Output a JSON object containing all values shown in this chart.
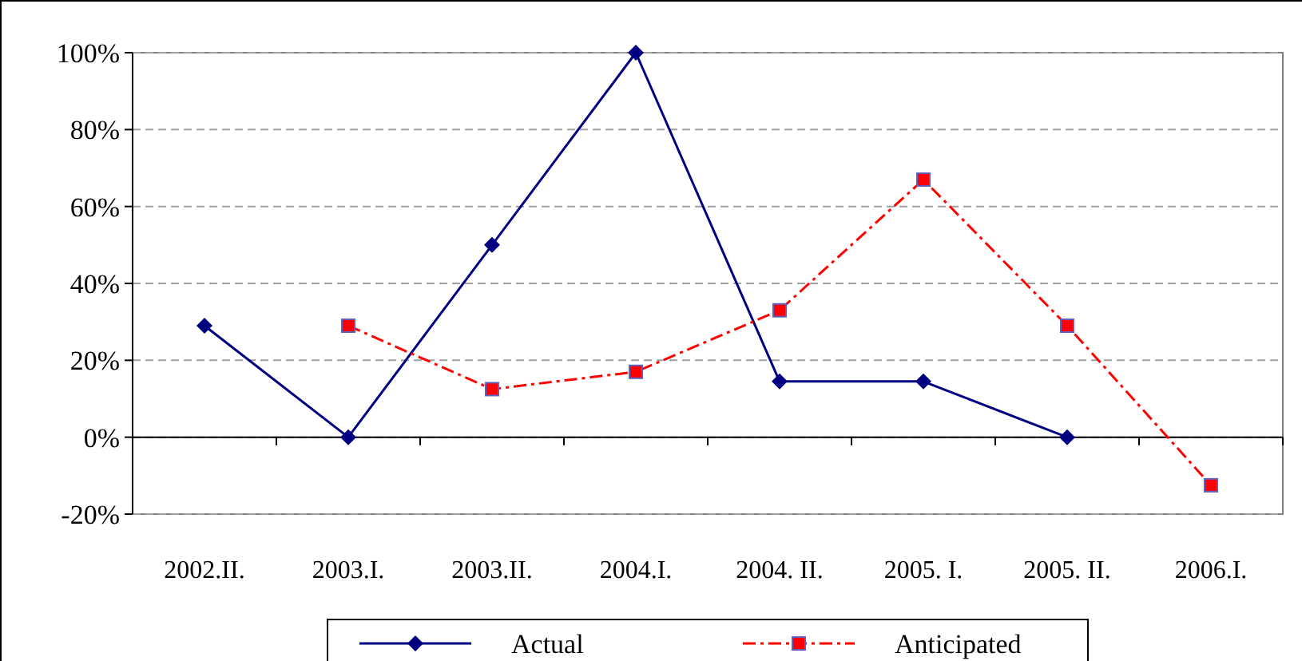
{
  "chart_data": {
    "type": "line",
    "categories": [
      "2002.II.",
      "2003.I.",
      "2003.II.",
      "2004.I.",
      "2004. II.",
      "2005. I.",
      "2005. II.",
      "2006.I."
    ],
    "series": [
      {
        "name": "Actual",
        "color": "#000080",
        "marker": "diamond",
        "line_style": "solid",
        "values": [
          29,
          0,
          50,
          100,
          14.5,
          14.5,
          0,
          null
        ]
      },
      {
        "name": "Anticipated",
        "color": "#ff0000",
        "marker": "square",
        "line_style": "dashed",
        "values": [
          null,
          29,
          12.5,
          17,
          33,
          67,
          29,
          -12.5
        ]
      }
    ],
    "ylim": [
      -20,
      100
    ],
    "yticks": [
      {
        "value": -20,
        "label": "-20%"
      },
      {
        "value": 0,
        "label": "0%"
      },
      {
        "value": 20,
        "label": "20%"
      },
      {
        "value": 40,
        "label": "40%"
      },
      {
        "value": 60,
        "label": "60%"
      },
      {
        "value": 80,
        "label": "80%"
      },
      {
        "value": 100,
        "label": "100%"
      }
    ],
    "grid": "y",
    "legend": "bottom"
  }
}
